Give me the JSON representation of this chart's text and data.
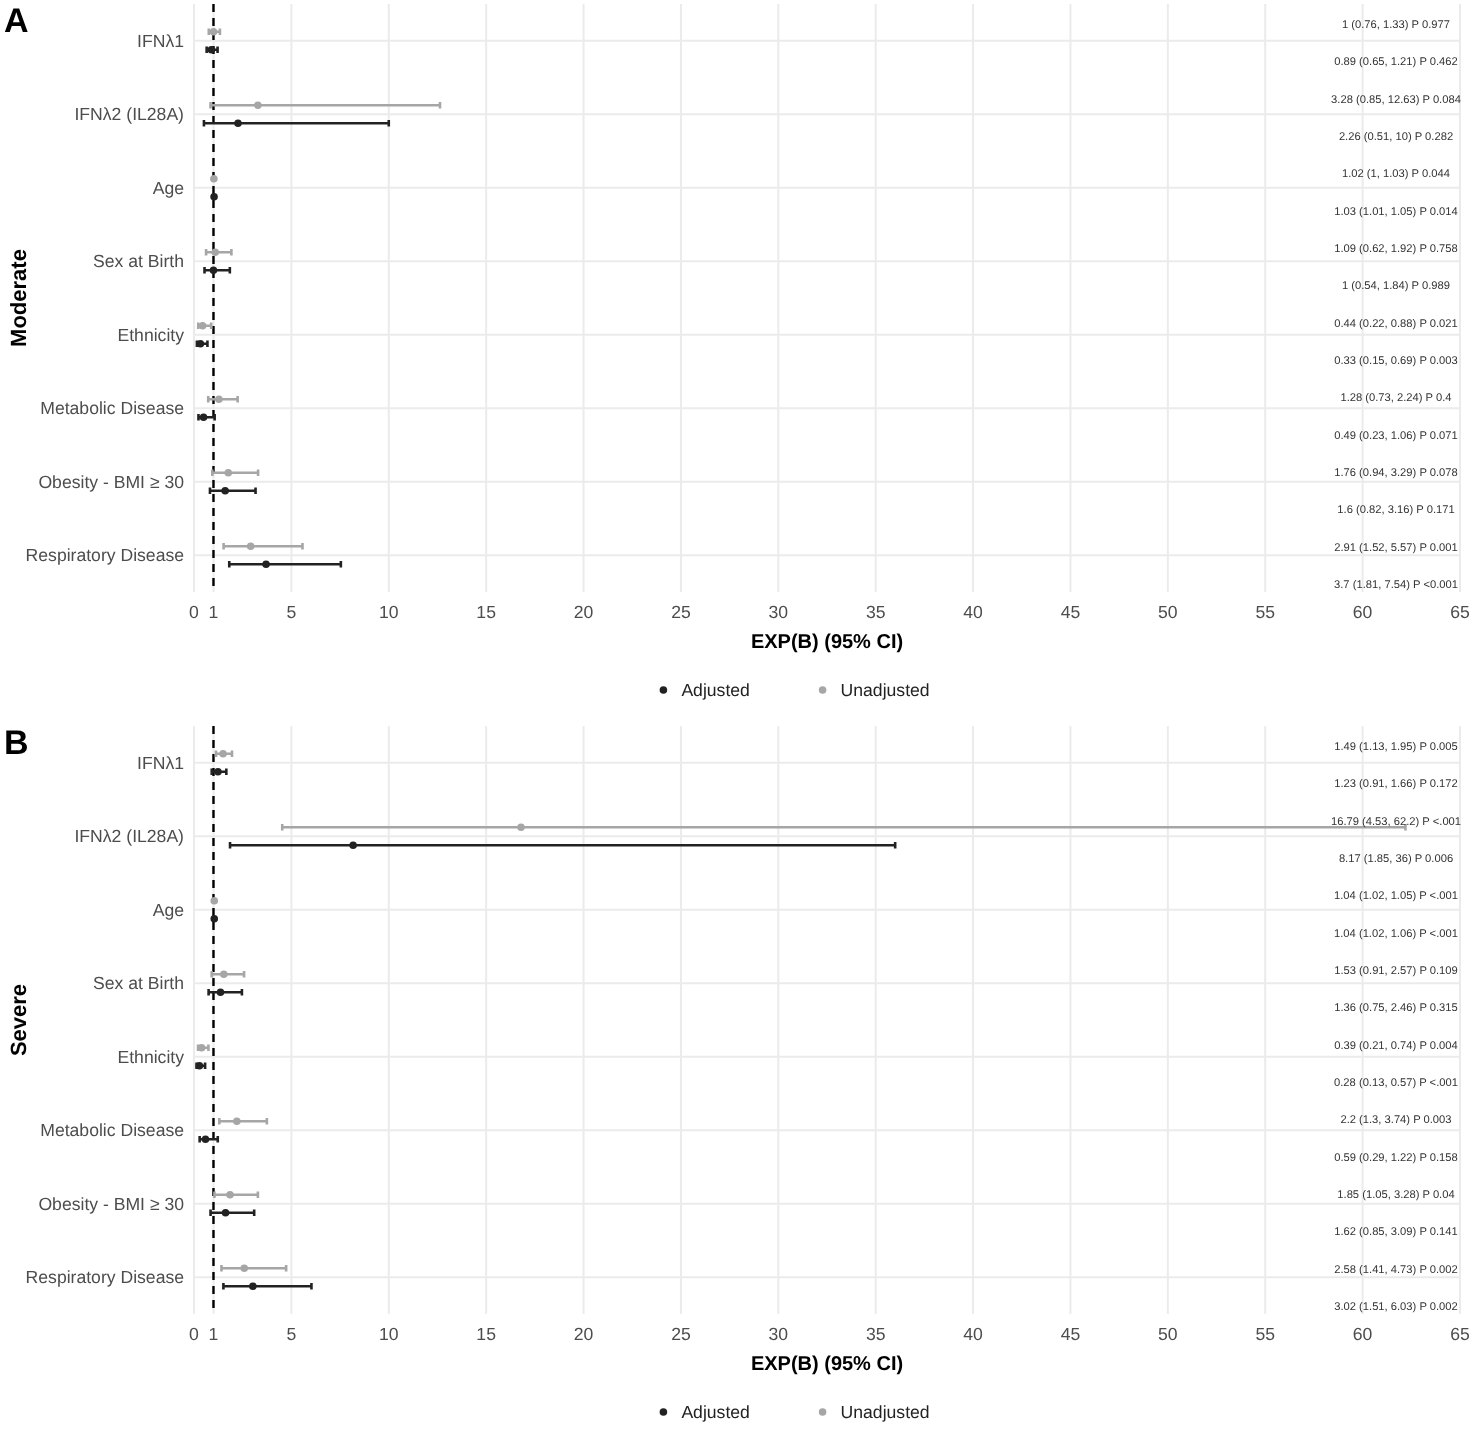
{
  "chart_data": [
    {
      "type": "scatter",
      "title": "A",
      "ylabel": "Moderate",
      "xlabel": "EXP(B) (95% CI)",
      "orientation": "horizontal",
      "categories": [
        "IFNλ1",
        "IFNλ2 (IL28A)",
        "Age",
        "Sex at Birth",
        "Ethnicity",
        "Metabolic Disease",
        "Obesity - BMI ≥ 30",
        "Respiratory Disease"
      ],
      "xlim": [
        0,
        65
      ],
      "xticks": [
        0,
        1,
        5,
        10,
        15,
        20,
        25,
        30,
        35,
        40,
        45,
        50,
        55,
        60,
        65
      ],
      "grid": true,
      "legend": "bottom",
      "marker": "circle",
      "ref_lines": [
        {
          "axis": "x",
          "value": 1,
          "line_style": "dashed",
          "color": "#000000"
        }
      ],
      "series": [
        {
          "name": "Adjusted",
          "color": "#222222",
          "values": [
            0.89,
            2.26,
            1.03,
            1,
            0.33,
            0.49,
            1.6,
            3.7
          ],
          "errors": [
            [
              0.65,
              1.21
            ],
            [
              0.51,
              10
            ],
            null,
            [
              0.54,
              1.84
            ],
            [
              0.15,
              0.69
            ],
            [
              0.23,
              1.06
            ],
            [
              0.82,
              3.16
            ],
            [
              1.81,
              7.54
            ]
          ]
        },
        {
          "name": "Unadjusted",
          "color": "#a6a6a6",
          "values": [
            1,
            3.28,
            1.02,
            1.09,
            0.44,
            1.28,
            1.76,
            2.91
          ],
          "errors": [
            [
              0.76,
              1.33
            ],
            [
              0.85,
              12.63
            ],
            null,
            [
              0.62,
              1.92
            ],
            [
              0.22,
              0.88
            ],
            [
              0.73,
              2.24
            ],
            [
              0.94,
              3.29
            ],
            [
              1.52,
              5.57
            ]
          ]
        }
      ],
      "annotations": [
        "1 (0.76, 1.33)  P 0.977",
        "0.89 (0.65, 1.21)  P 0.462",
        "3.28 (0.85, 12.63)  P 0.084",
        "2.26 (0.51, 10)  P 0.282",
        "1.02 (1, 1.03)  P 0.044",
        "1.03 (1.01, 1.05)  P 0.014",
        "1.09 (0.62, 1.92)  P 0.758",
        "1 (0.54, 1.84)  P 0.989",
        "0.44 (0.22, 0.88)  P 0.021",
        "0.33 (0.15, 0.69)  P 0.003",
        "1.28 (0.73, 2.24)  P 0.4",
        "0.49 (0.23, 1.06)  P 0.071",
        "1.76 (0.94, 3.29)  P 0.078",
        "1.6 (0.82, 3.16)  P 0.171",
        "2.91 (1.52, 5.57)  P 0.001",
        "3.7 (1.81, 7.54)  P <0.001"
      ]
    },
    {
      "type": "scatter",
      "title": "B",
      "ylabel": "Severe",
      "xlabel": "EXP(B) (95% CI)",
      "orientation": "horizontal",
      "categories": [
        "IFNλ1",
        "IFNλ2 (IL28A)",
        "Age",
        "Sex at Birth",
        "Ethnicity",
        "Metabolic Disease",
        "Obesity - BMI ≥ 30",
        "Respiratory Disease"
      ],
      "xlim": [
        0,
        65
      ],
      "xticks": [
        0,
        1,
        5,
        10,
        15,
        20,
        25,
        30,
        35,
        40,
        45,
        50,
        55,
        60,
        65
      ],
      "grid": true,
      "legend": "bottom",
      "marker": "circle",
      "ref_lines": [
        {
          "axis": "x",
          "value": 1,
          "line_style": "dashed",
          "color": "#000000"
        }
      ],
      "series": [
        {
          "name": "Adjusted",
          "color": "#222222",
          "values": [
            1.23,
            8.17,
            1.04,
            1.36,
            0.28,
            0.59,
            1.62,
            3.02
          ],
          "errors": [
            [
              0.91,
              1.66
            ],
            [
              1.85,
              36
            ],
            null,
            [
              0.75,
              2.46
            ],
            [
              0.13,
              0.57
            ],
            [
              0.29,
              1.22
            ],
            [
              0.85,
              3.09
            ],
            [
              1.51,
              6.03
            ]
          ]
        },
        {
          "name": "Unadjusted",
          "color": "#a6a6a6",
          "values": [
            1.49,
            16.79,
            1.04,
            1.53,
            0.39,
            2.2,
            1.85,
            2.58
          ],
          "errors": [
            [
              1.13,
              1.95
            ],
            [
              4.53,
              62.2
            ],
            null,
            [
              0.91,
              2.57
            ],
            [
              0.21,
              0.74
            ],
            [
              1.3,
              3.74
            ],
            [
              1.05,
              3.28
            ],
            [
              1.41,
              4.73
            ]
          ]
        }
      ],
      "annotations": [
        "1.49 (1.13, 1.95)  P 0.005",
        "1.23 (0.91, 1.66)  P 0.172",
        "16.79 (4.53, 62.2)  P <.001",
        "8.17 (1.85, 36)  P 0.006",
        "1.04 (1.02, 1.05)  P <.001",
        "1.04 (1.02, 1.06)  P <.001",
        "1.53 (0.91, 2.57)  P 0.109",
        "1.36 (0.75, 2.46)  P 0.315",
        "0.39 (0.21, 0.74)  P 0.004",
        "0.28 (0.13, 0.57)  P <.001",
        "2.2 (1.3, 3.74)  P 0.003",
        "0.59 (0.29, 1.22)  P 0.158",
        "1.85 (1.05, 3.28)  P 0.04",
        "1.62 (0.85, 3.09)  P 0.141",
        "2.58 (1.41, 4.73)  P 0.002",
        "3.02 (1.51, 6.03)  P 0.002"
      ]
    }
  ]
}
